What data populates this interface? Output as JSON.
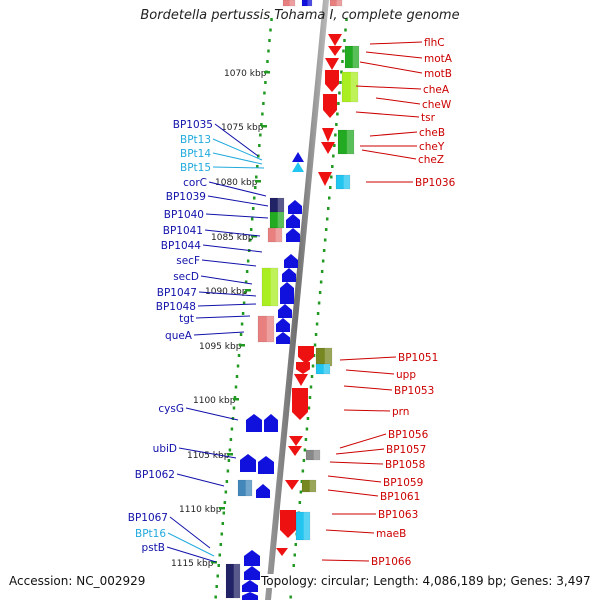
{
  "title": "Bordetella pertussis Tohama I, complete genome",
  "footer": {
    "accession": "Accession: NC_002929",
    "summary": "Topology: circular; Length: 4,086,189 bp; Genes: 3,497"
  },
  "colors": {
    "red": "#ee1111",
    "dark_red": "#cc0000",
    "blue": "#1111dd",
    "dark_blue": "#0000aa",
    "cyan": "#22c4f0",
    "green": "#22aa22",
    "olive": "#778822",
    "lime": "#aaee22",
    "pink": "#e88080",
    "steel": "#4488bb",
    "navy": "#222266",
    "gray": "#888888",
    "tick": "#229922",
    "label_red": "#cc0000",
    "label_blue": "#1111aa",
    "label_cyan": "#22aadd"
  },
  "kbp_ticks": [
    "1070 kbp",
    "1075 kbp",
    "1080 kbp",
    "1085 kbp",
    "1090 kbp",
    "1095 kbp",
    "1100 kbp",
    "1105 kbp",
    "1110 kbp",
    "1115 kbp"
  ],
  "left_labels": [
    {
      "text": "BP1035",
      "color": "blue"
    },
    {
      "text": "BPt13",
      "color": "cyan"
    },
    {
      "text": "BPt14",
      "color": "cyan"
    },
    {
      "text": "BPt15",
      "color": "cyan"
    },
    {
      "text": "corC",
      "color": "blue"
    },
    {
      "text": "BP1039",
      "color": "blue"
    },
    {
      "text": "BP1040",
      "color": "blue"
    },
    {
      "text": "BP1041",
      "color": "blue"
    },
    {
      "text": "BP1044",
      "color": "blue"
    },
    {
      "text": "secF",
      "color": "blue"
    },
    {
      "text": "secD",
      "color": "blue"
    },
    {
      "text": "BP1047",
      "color": "blue"
    },
    {
      "text": "BP1048",
      "color": "blue"
    },
    {
      "text": "tgt",
      "color": "blue"
    },
    {
      "text": "queA",
      "color": "blue"
    },
    {
      "text": "cysG",
      "color": "blue"
    },
    {
      "text": "ubiD",
      "color": "blue"
    },
    {
      "text": "BP1062",
      "color": "blue"
    },
    {
      "text": "BP1067",
      "color": "blue"
    },
    {
      "text": "BPt16",
      "color": "cyan"
    },
    {
      "text": "pstB",
      "color": "blue"
    }
  ],
  "right_labels": [
    {
      "text": "flhC",
      "color": "red"
    },
    {
      "text": "motA",
      "color": "red"
    },
    {
      "text": "motB",
      "color": "red"
    },
    {
      "text": "cheA",
      "color": "red"
    },
    {
      "text": "cheW",
      "color": "red"
    },
    {
      "text": "tsr",
      "color": "red"
    },
    {
      "text": "cheB",
      "color": "red"
    },
    {
      "text": "cheY",
      "color": "red"
    },
    {
      "text": "cheZ",
      "color": "red"
    },
    {
      "text": "BP1036",
      "color": "red"
    },
    {
      "text": "BP1051",
      "color": "red"
    },
    {
      "text": "upp",
      "color": "red"
    },
    {
      "text": "BP1053",
      "color": "red"
    },
    {
      "text": "prn",
      "color": "red"
    },
    {
      "text": "BP1056",
      "color": "red"
    },
    {
      "text": "BP1057",
      "color": "red"
    },
    {
      "text": "BP1058",
      "color": "red"
    },
    {
      "text": "BP1059",
      "color": "red"
    },
    {
      "text": "BP1061",
      "color": "red"
    },
    {
      "text": "BP1063",
      "color": "red"
    },
    {
      "text": "maeB",
      "color": "red"
    },
    {
      "text": "BP1066",
      "color": "red"
    }
  ]
}
